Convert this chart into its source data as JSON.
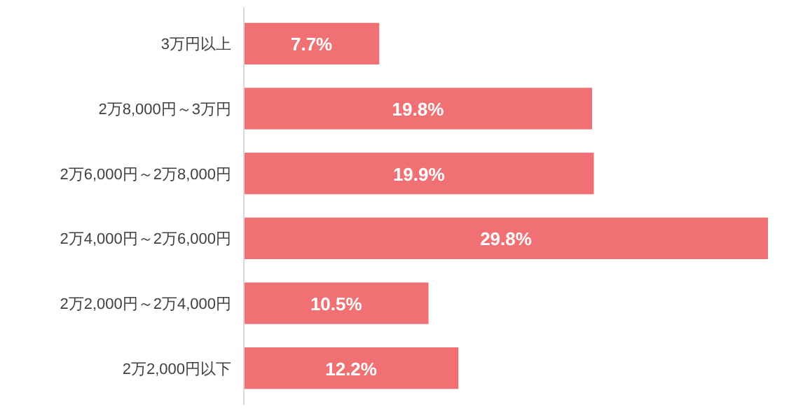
{
  "chart_data": {
    "type": "bar",
    "orientation": "horizontal",
    "color": "#f07074",
    "categories": [
      "3万円以上",
      "2万8,000円～3万円",
      "2万6,000円～2万8,000円",
      "2万4,000円～2万6,000円",
      "2万2,000円～2万4,000円",
      "2万2,000円以下"
    ],
    "values": [
      7.7,
      19.8,
      19.9,
      29.8,
      10.5,
      12.2
    ],
    "value_labels": [
      "7.7%",
      "19.8%",
      "19.9%",
      "29.8%",
      "10.5%",
      "12.2%"
    ]
  }
}
